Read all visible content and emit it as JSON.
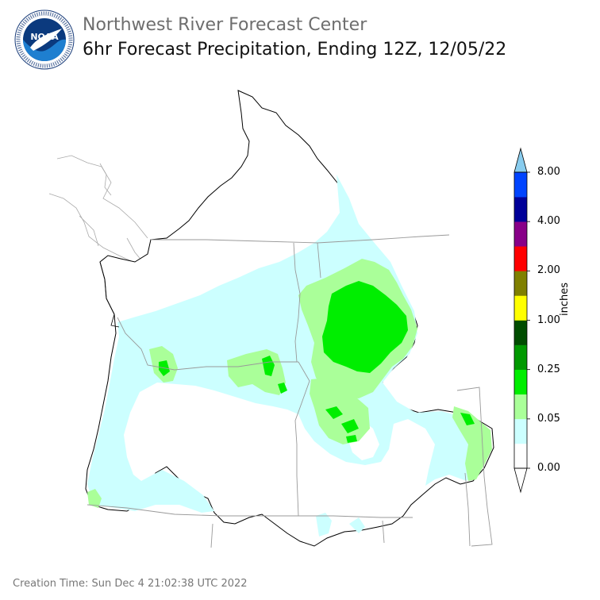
{
  "header": {
    "org": "Northwest River Forecast Center",
    "product": "6hr Forecast Precipitation, Ending 12Z, 12/05/22"
  },
  "logo": {
    "wordmark": "NOAA",
    "ring_text": "NATIONAL OCEANIC AND ATMOSPHERIC ADMINISTRATION · U.S. DEPARTMENT OF COMMERCE"
  },
  "legend": {
    "unit": "inches",
    "ticks": [
      "8.00",
      "4.00",
      "2.00",
      "1.00",
      "0.25",
      "0.05",
      "0.00"
    ],
    "colors": [
      "#ffffff",
      "#ccffff",
      "#aaff99",
      "#00ee00",
      "#009900",
      "#004d00",
      "#ffff00",
      "#808000",
      "#ff0000",
      "#880088",
      "#000099",
      "#0044ff"
    ],
    "over_color": "#88ccee",
    "under_color": "#ffffff"
  },
  "footer": {
    "creation_time": "Creation Time: Sun Dec 4 21:02:38 UTC 2022"
  }
}
